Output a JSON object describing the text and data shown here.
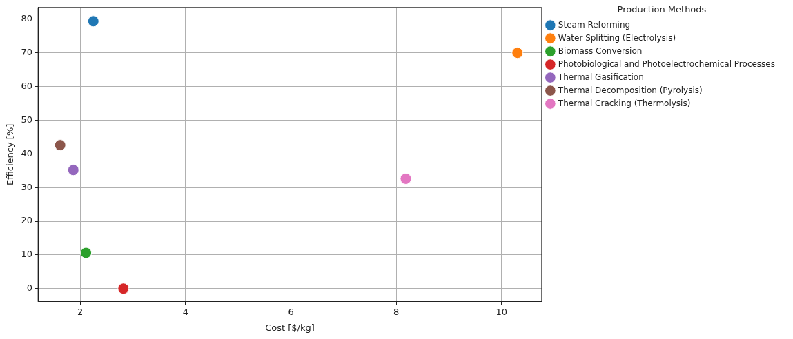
{
  "chart_data": {
    "type": "scatter",
    "xlabel": "Cost [$/kg]",
    "ylabel": "Efficiency [%]",
    "legend_title": "Production Methods",
    "legend": "right",
    "grid": true,
    "marker": "circle",
    "xlim": [
      1.2,
      10.76
    ],
    "xticks": [
      2,
      4,
      6,
      8,
      10
    ],
    "ylim": [
      -3.9,
      83.5
    ],
    "yticks": [
      0,
      10,
      20,
      30,
      40,
      50,
      60,
      70,
      80
    ],
    "series": [
      {
        "name": "Steam Reforming",
        "color": "#1f77b4",
        "x": [
          2.25
        ],
        "values": [
          79.4
        ]
      },
      {
        "name": "Water Splitting (Electrolysis)",
        "color": "#ff7f0e",
        "x": [
          10.3
        ],
        "values": [
          70
        ]
      },
      {
        "name": "Biomass Conversion",
        "color": "#2ca02c",
        "x": [
          2.11
        ],
        "values": [
          10.6
        ]
      },
      {
        "name": "Photobiological and Photoelectrochemical Processes",
        "color": "#d62728",
        "x": [
          2.82
        ],
        "values": [
          0
        ]
      },
      {
        "name": "Thermal Gasification",
        "color": "#9467bd",
        "x": [
          1.87
        ],
        "values": [
          35.2
        ]
      },
      {
        "name": "Thermal Decomposition (Pyrolysis)",
        "color": "#8c564b",
        "x": [
          1.62
        ],
        "values": [
          42.6
        ]
      },
      {
        "name": "Thermal Cracking (Thermolysis)",
        "color": "#e377c2",
        "x": [
          8.18
        ],
        "values": [
          32.6
        ]
      }
    ]
  }
}
